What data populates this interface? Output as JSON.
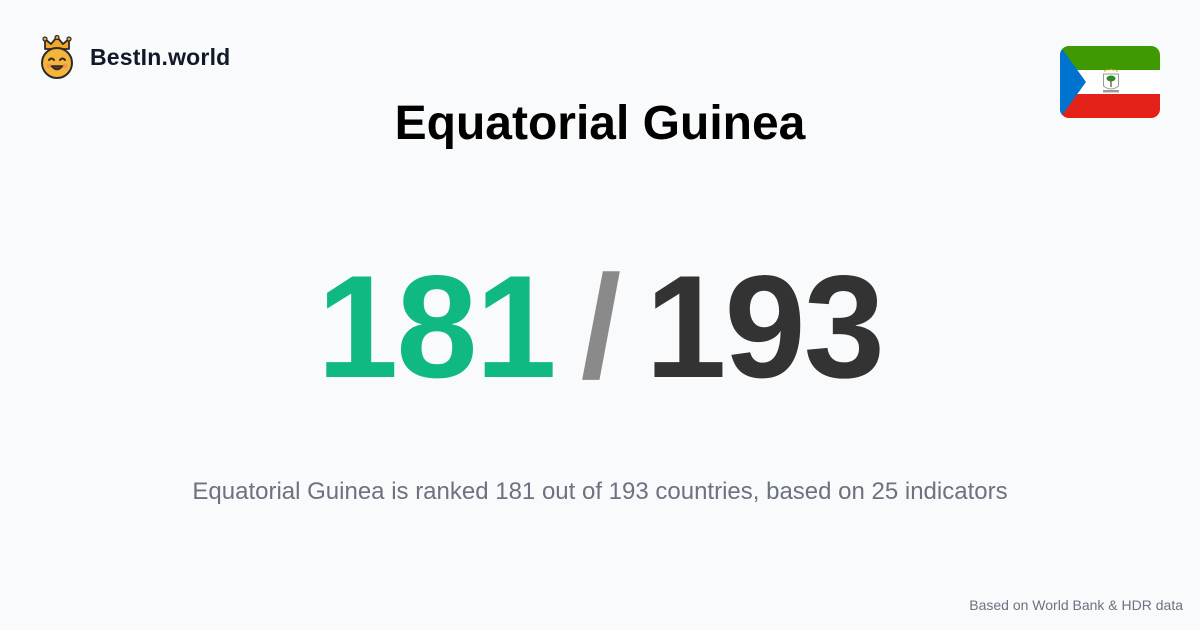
{
  "brand": {
    "name": "BestIn.world",
    "logo_icon": "crowned-smiley-icon"
  },
  "country": {
    "name": "Equatorial Guinea",
    "flag_icon": "equatorial-guinea-flag-icon"
  },
  "ranking": {
    "rank": "181",
    "separator": "/",
    "total": "193",
    "rank_color": "#10b981",
    "total_color": "#333333"
  },
  "summary": "Equatorial Guinea is ranked 181 out of 193 countries, based on 25 indicators",
  "footer": {
    "source": "Based on World Bank & HDR data"
  }
}
